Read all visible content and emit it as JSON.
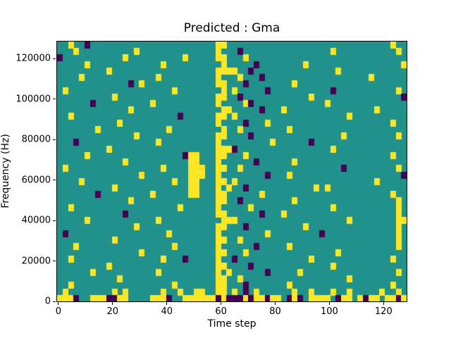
{
  "chart_data": {
    "type": "heatmap",
    "title": "Predicted : Gma",
    "xlabel": "Time step",
    "ylabel": "Frequency (Hz)",
    "x_range": [
      -0.5,
      128.5
    ],
    "y_range": [
      0,
      128500
    ],
    "xticks": [
      0,
      20,
      40,
      60,
      80,
      100,
      120
    ],
    "yticks": [
      0,
      20000,
      40000,
      60000,
      80000,
      100000,
      120000
    ],
    "colormap": "viridis",
    "colors": {
      "0": "#21918c",
      "1": "#fde725",
      "2": "#440154"
    },
    "legend_note": "0=mid(teal) 1=high(yellow) 2=low(dark purple)",
    "grid_cols": 64,
    "grid_rows": 40,
    "grid": [
      "0010020000000000000000000000011000000000000000000000000000000100",
      "0001000000000010000000000000010002000000000000000010000000000010",
      "2000000000001000000000010000011000100000000000000000000000000000",
      "0000010000000000000100000000001000002000000001000000000000000001",
      "0000000001000000000000000000011110020000000000000001000000000000",
      "0000100000000000001000000000010001000200000000000000000001000000",
      "0000000000000201000000000000011000200000000100000000000000000000",
      "0100000000000000000001000000001010000020000000000020000000000010",
      "0000000000100000000000000000011002000000000000100000000000000002",
      "0000002000000000010000000000010000120000000000000100000000000000",
      "0000000000000100000000000000001100000200010000000000000000100000",
      "0010000000000000000000200000011010000000000000000000010000000000",
      "0000000000010000000000000000010000200010000000000000000000000100",
      "0000000100000000000010000000001001000000001000000000000000000000",
      "0000000000000010000000000000011000020000000000000000100000000010",
      "0002000000000000001000000000010000000001000000200000000000000000",
      "0000000001000000000000000000011120000000000000000010000000000000",
      "0000010000000000000000021100011000100000000000000000000000000100",
      "0000000000001000000000001100010000002000000100000000000000000000",
      "0100000000000000000100001110011001000000000000000000200000000010",
      "0000000000000001000000001110010000000020001000000000000000000002",
      "0000100000000000000001001100011010000000000000000000000000100000",
      "0000000000100000000000001100010100200000000000010100000000000000",
      "0000000200000000010000001100011000000100000000000000000000000100",
      "0000000000000100000000000000011002000000000100000000000000000010",
      "0010000000000000000000100000010000010000000000000010000000000010",
      "0000000000002000000000000000011000000200010000000000000000000010",
      "0000010000000000001000000000001110000000000000000000010000000011",
      "0000000000000010000000000000011000200000000001000000000000000010",
      "0200000000000000000010000000010000000010000000002000000000000010",
      "0000000000100000000000000000011001000000000000000000000000000010",
      "0001000000000000000001000000010000002000001000000000000000000010",
      "0000000000000001000000000000011000100000000000000001000000000000",
      "0010000000000000000100020000010020000000000000100000000000000100",
      "0000000001000000000000000000011000020000000000000010000000000000",
      "0000001000000000001000000000010100000020000010000000000000000010",
      "0000000000010000000000000000011001000000000000000000010000000000",
      "0010000000000000000001000000011000200000001000000000000000000100",
      "0100000000101000000100100110011010201000000100100010010000010010",
      "1112001112211000011120011111121222121121102120111102110121101121"
    ]
  }
}
